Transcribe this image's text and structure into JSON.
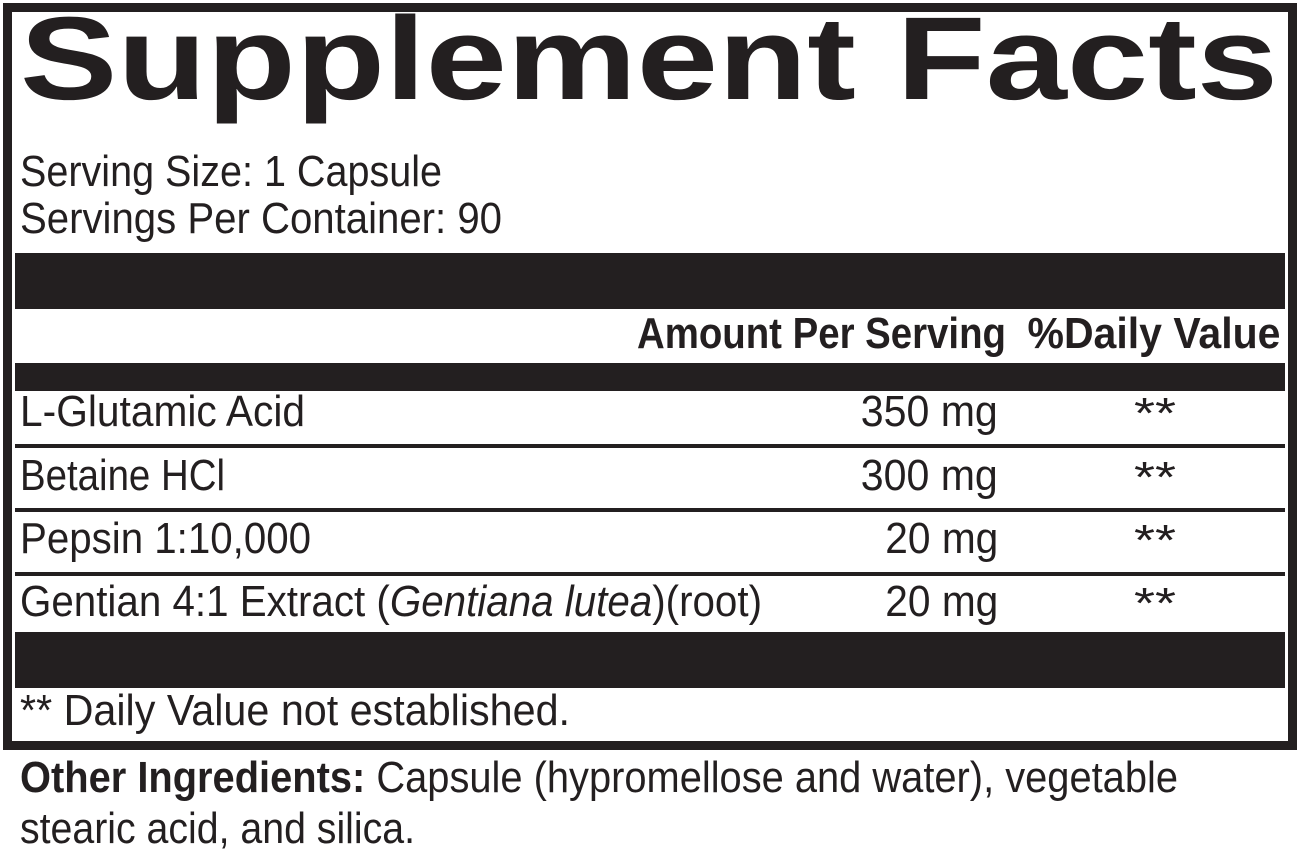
{
  "title": "Supplement Facts",
  "serving_size": "Serving Size: 1 Capsule",
  "servings_per_container": "Servings Per Container: 90",
  "header": {
    "amount": "Amount Per Serving",
    "daily_value": "%Daily Value"
  },
  "rows": [
    {
      "name": "L-Glutamic Acid",
      "amount": "350 mg",
      "dv": "**"
    },
    {
      "name": "Betaine HCl",
      "amount": "300 mg",
      "dv": "**"
    },
    {
      "name": "Pepsin 1:10,000",
      "amount": "20 mg",
      "dv": "**"
    },
    {
      "name_prefix": "Gentian 4:1 Extract (",
      "name_italic": "Gentiana lutea",
      "name_suffix": ")(root)",
      "amount": "20 mg",
      "dv": "**"
    }
  ],
  "footnote": "** Daily Value not established.",
  "other_ingredients": {
    "label": "Other Ingredients:",
    "text_line1": " Capsule (hypromellose and water), vegetable",
    "text_line2": "stearic acid, and silica."
  }
}
